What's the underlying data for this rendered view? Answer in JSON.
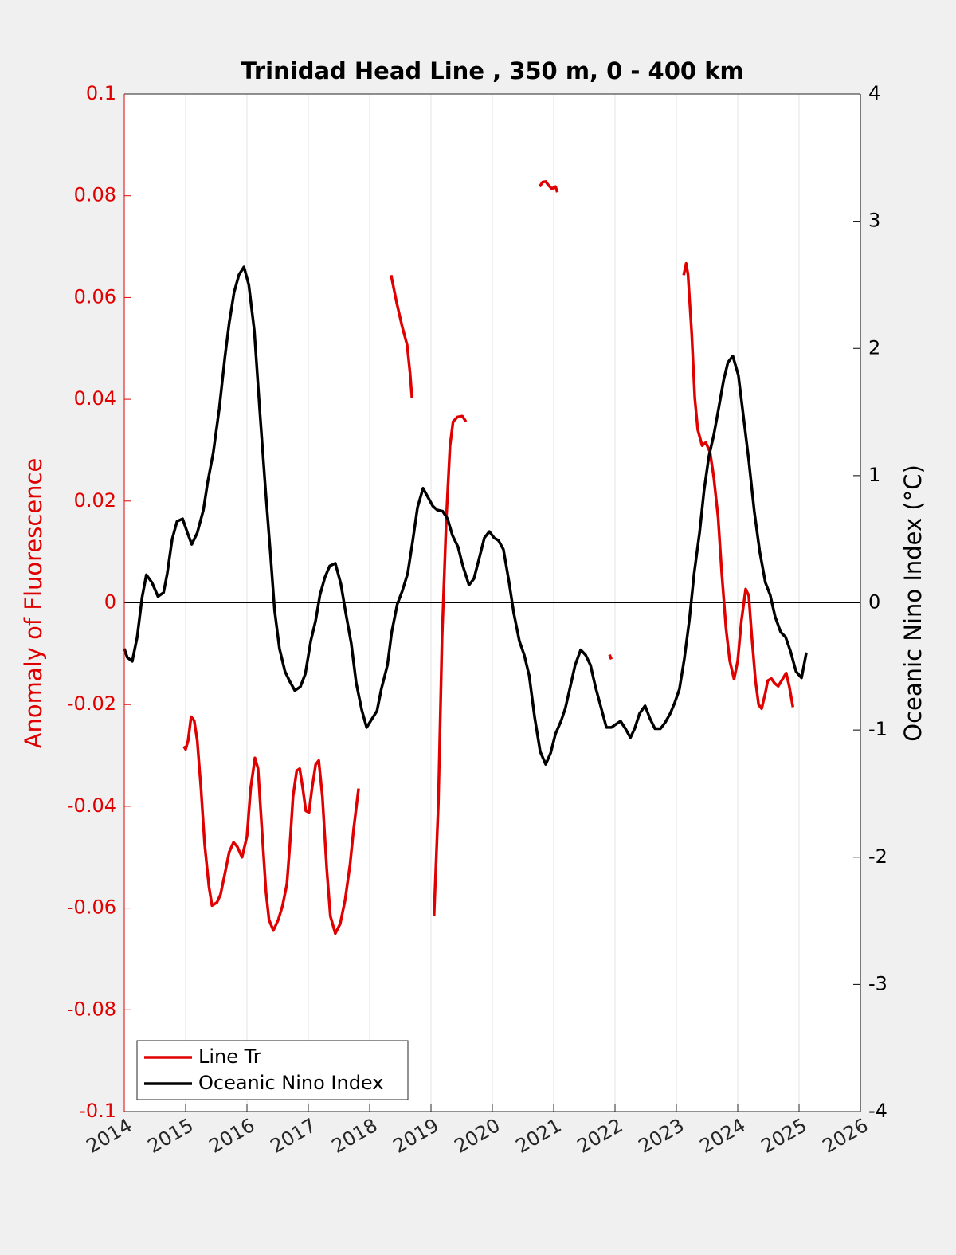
{
  "chart_data": {
    "type": "line",
    "title": "Trinidad Head Line , 350 m, 0 - 400 km",
    "ylabel": "Anomaly of Fluorescence",
    "y2label": "Oceanic Nino Index (°C)",
    "xlim": [
      2014,
      2026
    ],
    "xticks": [
      2014,
      2015,
      2016,
      2017,
      2018,
      2019,
      2020,
      2021,
      2022,
      2023,
      2024,
      2025,
      2026
    ],
    "ylim": [
      -0.1,
      0.1
    ],
    "yticks": [
      -0.1,
      -0.08,
      -0.06,
      -0.04,
      -0.02,
      0,
      0.02,
      0.04,
      0.06,
      0.08,
      0.1
    ],
    "y2lim": [
      -4,
      4
    ],
    "y2ticks": [
      -4,
      -3,
      -2,
      -1,
      0,
      1,
      2,
      3,
      4
    ],
    "grid": "x",
    "zero_line": true,
    "legend": "lower left",
    "series": [
      {
        "name": "Line Tr",
        "color": "#e00000",
        "x": [
          2014.97,
          2015.0,
          2015.04,
          2015.09,
          2015.14,
          2015.19,
          2015.25,
          2015.31,
          2015.38,
          2015.43,
          2015.51,
          2015.57,
          2015.65,
          2015.71,
          2015.78,
          2015.84,
          2015.92,
          2016.0,
          2016.06,
          2016.13,
          2016.18,
          2016.25,
          2016.31,
          2016.36,
          2016.43,
          2016.51,
          2016.58,
          2016.65,
          2016.7,
          2016.75,
          2016.81,
          2016.86,
          2016.91,
          2016.96,
          2017.01,
          2017.06,
          2017.12,
          2017.17,
          2017.23,
          2017.3,
          2017.36,
          2017.44,
          2017.52,
          2017.6,
          2017.68,
          2017.74,
          2017.82,
          null,
          2018.35,
          2018.44,
          2018.53,
          2018.61,
          2018.66,
          2018.69,
          null,
          2019.05,
          2019.12,
          2019.18,
          2019.25,
          2019.31,
          2019.36,
          2019.43,
          2019.51,
          2019.57,
          null,
          2020.77,
          2020.82,
          2020.87,
          2020.92,
          2020.97,
          2021.03,
          2021.06,
          null,
          2021.91,
          2021.94,
          null,
          2023.12,
          2023.16,
          2023.19,
          2023.25,
          2023.3,
          2023.35,
          2023.42,
          2023.48,
          2023.55,
          2023.61,
          2023.68,
          2023.74,
          2023.81,
          2023.87,
          2023.94,
          2024.0,
          2024.06,
          2024.13,
          2024.18,
          2024.23,
          2024.29,
          2024.34,
          2024.39,
          2024.45,
          2024.49,
          2024.55,
          2024.6,
          2024.66,
          2024.73,
          2024.79,
          2024.84,
          2024.9
        ],
        "values": [
          -0.0282,
          -0.0288,
          -0.0271,
          -0.0224,
          -0.0232,
          -0.0271,
          -0.0365,
          -0.0475,
          -0.0558,
          -0.0595,
          -0.0589,
          -0.0573,
          -0.0526,
          -0.049,
          -0.0471,
          -0.0479,
          -0.05,
          -0.0459,
          -0.0365,
          -0.0305,
          -0.0326,
          -0.0459,
          -0.0569,
          -0.0623,
          -0.0644,
          -0.0623,
          -0.0595,
          -0.0553,
          -0.0475,
          -0.0381,
          -0.033,
          -0.0326,
          -0.0365,
          -0.0409,
          -0.0412,
          -0.0365,
          -0.0318,
          -0.031,
          -0.0381,
          -0.0522,
          -0.0616,
          -0.065,
          -0.0631,
          -0.0584,
          -0.0514,
          -0.0443,
          -0.0365,
          null,
          0.0644,
          0.059,
          0.0543,
          0.0507,
          0.045,
          0.0403,
          null,
          -0.0615,
          -0.0396,
          -0.0067,
          0.0168,
          0.0309,
          0.0356,
          0.0365,
          0.0367,
          0.0356,
          null,
          0.0818,
          0.0827,
          0.0828,
          0.082,
          0.0814,
          0.0818,
          0.0807,
          null,
          -0.0102,
          -0.0111,
          null,
          0.0644,
          0.0667,
          0.0645,
          0.0528,
          0.0403,
          0.034,
          0.0309,
          0.0315,
          0.0296,
          0.0246,
          0.0168,
          0.0058,
          -0.0052,
          -0.0114,
          -0.015,
          -0.0114,
          -0.0036,
          0.0027,
          0.0014,
          -0.0067,
          -0.0153,
          -0.02,
          -0.0208,
          -0.0177,
          -0.0153,
          -0.0149,
          -0.0158,
          -0.0164,
          -0.015,
          -0.0138,
          -0.0164,
          -0.0205
        ]
      },
      {
        "name": "Oceanic Nino Index",
        "color": "#000000",
        "axis": "y2",
        "x": [
          2014.0,
          2014.05,
          2014.13,
          2014.21,
          2014.29,
          2014.36,
          2014.45,
          2014.55,
          2014.64,
          2014.7,
          2014.78,
          2014.86,
          2014.95,
          2015.03,
          2015.1,
          2015.19,
          2015.29,
          2015.36,
          2015.45,
          2015.55,
          2015.64,
          2015.71,
          2015.79,
          2015.87,
          2015.95,
          2016.03,
          2016.12,
          2016.21,
          2016.3,
          2016.38,
          2016.45,
          2016.53,
          2016.62,
          2016.7,
          2016.78,
          2016.87,
          2016.95,
          2017.04,
          2017.12,
          2017.19,
          2017.27,
          2017.35,
          2017.44,
          2017.53,
          2017.61,
          2017.7,
          2017.78,
          2017.87,
          2017.95,
          2018.04,
          2018.12,
          2018.19,
          2018.29,
          2018.36,
          2018.45,
          2018.53,
          2018.62,
          2018.7,
          2018.78,
          2018.87,
          2018.95,
          2019.03,
          2019.1,
          2019.19,
          2019.27,
          2019.35,
          2019.44,
          2019.52,
          2019.62,
          2019.7,
          2019.78,
          2019.87,
          2019.95,
          2020.03,
          2020.1,
          2020.18,
          2020.27,
          2020.35,
          2020.44,
          2020.52,
          2020.6,
          2020.69,
          2020.78,
          2020.87,
          2020.95,
          2021.03,
          2021.12,
          2021.19,
          2021.27,
          2021.35,
          2021.44,
          2021.52,
          2021.6,
          2021.68,
          2021.77,
          2021.86,
          2021.94,
          2022.0,
          2022.09,
          2022.17,
          2022.25,
          2022.32,
          2022.4,
          2022.49,
          2022.57,
          2022.65,
          2022.74,
          2022.82,
          2022.9,
          2022.97,
          2023.05,
          2023.13,
          2023.21,
          2023.29,
          2023.38,
          2023.45,
          2023.53,
          2023.61,
          2023.69,
          2023.77,
          2023.84,
          2023.92,
          2024.01,
          2024.09,
          2024.18,
          2024.27,
          2024.36,
          2024.45,
          2024.53,
          2024.61,
          2024.7,
          2024.78,
          2024.86,
          2024.95,
          2025.04,
          2025.12
        ],
        "values": [
          -0.36,
          -0.43,
          -0.46,
          -0.27,
          0.04,
          0.22,
          0.16,
          0.05,
          0.08,
          0.23,
          0.5,
          0.64,
          0.66,
          0.55,
          0.46,
          0.55,
          0.73,
          0.95,
          1.18,
          1.53,
          1.93,
          2.2,
          2.44,
          2.58,
          2.64,
          2.5,
          2.14,
          1.5,
          0.9,
          0.4,
          -0.06,
          -0.36,
          -0.54,
          -0.62,
          -0.69,
          -0.66,
          -0.56,
          -0.3,
          -0.14,
          0.06,
          0.2,
          0.29,
          0.31,
          0.15,
          -0.08,
          -0.32,
          -0.63,
          -0.84,
          -0.98,
          -0.91,
          -0.85,
          -0.68,
          -0.49,
          -0.23,
          -0.01,
          0.09,
          0.23,
          0.48,
          0.75,
          0.9,
          0.83,
          0.76,
          0.73,
          0.72,
          0.66,
          0.53,
          0.44,
          0.29,
          0.14,
          0.19,
          0.34,
          0.51,
          0.56,
          0.51,
          0.49,
          0.42,
          0.17,
          -0.08,
          -0.3,
          -0.41,
          -0.57,
          -0.9,
          -1.17,
          -1.27,
          -1.18,
          -1.03,
          -0.93,
          -0.83,
          -0.66,
          -0.49,
          -0.37,
          -0.41,
          -0.49,
          -0.66,
          -0.82,
          -0.98,
          -0.98,
          -0.96,
          -0.93,
          -0.99,
          -1.06,
          -0.99,
          -0.87,
          -0.81,
          -0.91,
          -0.99,
          -0.99,
          -0.94,
          -0.87,
          -0.79,
          -0.68,
          -0.44,
          -0.14,
          0.23,
          0.56,
          0.88,
          1.15,
          1.32,
          1.53,
          1.75,
          1.89,
          1.94,
          1.79,
          1.48,
          1.12,
          0.72,
          0.4,
          0.16,
          0.06,
          -0.11,
          -0.23,
          -0.27,
          -0.38,
          -0.54,
          -0.59,
          -0.39
        ]
      }
    ]
  }
}
